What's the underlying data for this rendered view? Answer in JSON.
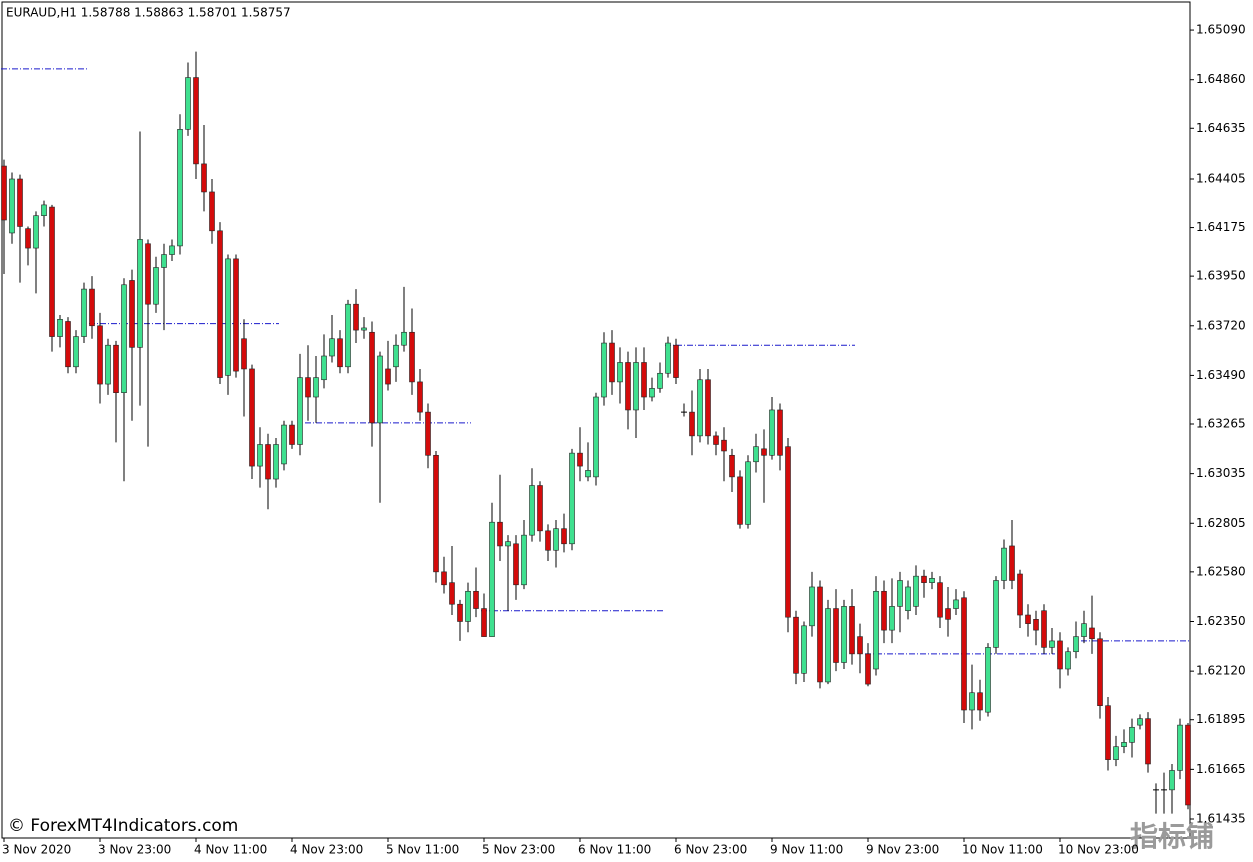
{
  "chart_data": {
    "type": "candlestick",
    "title": "EURAUD,H1  1.58788 1.58863 1.58701 1.58757",
    "categories": [
      "3 Nov 2020",
      null,
      null,
      null,
      null,
      null,
      null,
      null,
      null,
      null,
      null,
      null,
      "3 Nov 23:00",
      null,
      null,
      null,
      null,
      null,
      null,
      null,
      null,
      null,
      null,
      null,
      "4 Nov 11:00",
      null,
      null,
      null,
      null,
      null,
      null,
      null,
      null,
      null,
      null,
      null,
      "4 Nov 23:00",
      null,
      null,
      null,
      null,
      null,
      null,
      null,
      null,
      null,
      null,
      null,
      "5 Nov 11:00",
      null,
      null,
      null,
      null,
      null,
      null,
      null,
      null,
      null,
      null,
      null,
      "5 Nov 23:00",
      null,
      null,
      null,
      null,
      null,
      null,
      null,
      null,
      null,
      null,
      null,
      "6 Nov 11:00",
      null,
      null,
      null,
      null,
      null,
      null,
      null,
      null,
      null,
      null,
      null,
      "6 Nov 23:00",
      null,
      null,
      null,
      null,
      null,
      null,
      null,
      null,
      null,
      null,
      null,
      "9 Nov 11:00",
      null,
      null,
      null,
      null,
      null,
      null,
      null,
      null,
      null,
      null,
      null,
      "9 Nov 23:00",
      null,
      null,
      null,
      null,
      null,
      null,
      null,
      null,
      null,
      null,
      null,
      "10 Nov 11:00",
      null,
      null,
      null,
      null,
      null,
      null,
      null,
      null,
      null,
      null,
      null,
      "10 Nov 23:00",
      null,
      null,
      null,
      null,
      null,
      null,
      null,
      null,
      null,
      null,
      null,
      null,
      null,
      null,
      null,
      null
    ],
    "open": [
      1.6446,
      1.6415,
      1.644,
      1.6417,
      1.6408,
      1.6423,
      1.6427,
      1.6367,
      1.6374,
      1.6353,
      1.6367,
      1.6389,
      1.6372,
      1.6345,
      1.6363,
      1.6341,
      1.6393,
      1.6362,
      1.641,
      1.6382,
      1.6399,
      1.6405,
      1.6409,
      1.6463,
      1.6487,
      1.6447,
      1.6434,
      1.6416,
      1.6349,
      1.6403,
      1.6366,
      1.6352,
      1.6307,
      1.6317,
      1.6301,
      1.6308,
      1.6326,
      1.6317,
      1.6348,
      1.6339,
      1.6347,
      1.6358,
      1.6366,
      1.6353,
      1.6382,
      1.637,
      1.6369,
      1.6327,
      1.6352,
      1.6353,
      1.6363,
      1.6369,
      1.6346,
      1.6332,
      1.6312,
      1.6258,
      1.6253,
      1.6243,
      1.6235,
      1.6249,
      1.6241,
      1.6228,
      1.6281,
      1.627,
      1.6271,
      1.6252,
      1.6275,
      1.6298,
      1.6277,
      1.6268,
      1.6278,
      1.6271,
      1.6313,
      1.6302,
      1.6302,
      1.6339,
      1.6364,
      1.6346,
      1.6355,
      1.6333,
      1.6355,
      1.6339,
      1.6343,
      1.635,
      1.6363,
      1.6332,
      1.6332,
      1.6321,
      1.6347,
      1.6321,
      1.6319,
      1.6312,
      1.6302,
      1.628,
      1.6309,
      1.6315,
      1.6312,
      1.6333,
      1.6316,
      1.6237,
      1.6211,
      1.6233,
      1.6251,
      1.6207,
      1.6241,
      1.6216,
      1.6242,
      1.6228,
      1.622,
      1.6213,
      1.6249,
      1.6231,
      1.6242,
      1.624,
      1.6242,
      1.6256,
      1.6253,
      1.6253,
      1.6241,
      1.6241,
      1.6246,
      1.6194,
      1.6202,
      1.6193,
      1.6223,
      1.6254,
      1.627,
      1.6257,
      1.6238,
      1.6236,
      1.624,
      1.6223,
      1.6226,
      1.6213,
      1.6221,
      1.6228,
      1.6232,
      1.6227,
      1.6196,
      1.6171,
      1.6177,
      1.6179,
      1.6187,
      1.619,
      1.6157,
      1.6157,
      1.6157,
      1.6166,
      1.6187
    ],
    "high": [
      1.6449,
      1.6443,
      1.6442,
      1.6418,
      1.6425,
      1.643,
      1.6428,
      1.6377,
      1.6376,
      1.637,
      1.6392,
      1.6395,
      1.6378,
      1.6366,
      1.6365,
      1.6394,
      1.6398,
      1.6462,
      1.6412,
      1.6404,
      1.641,
      1.6412,
      1.647,
      1.6494,
      1.6499,
      1.6465,
      1.644,
      1.642,
      1.6405,
      1.6405,
      1.6375,
      1.6354,
      1.6325,
      1.6322,
      1.632,
      1.6328,
      1.6328,
      1.6359,
      1.6363,
      1.6358,
      1.6368,
      1.6377,
      1.637,
      1.6384,
      1.6389,
      1.6376,
      1.6374,
      1.636,
      1.6365,
      1.6368,
      1.639,
      1.638,
      1.6352,
      1.6336,
      1.6314,
      1.6265,
      1.627,
      1.6245,
      1.6253,
      1.626,
      1.6248,
      1.629,
      1.6303,
      1.6275,
      1.6275,
      1.6282,
      1.6306,
      1.63,
      1.628,
      1.6282,
      1.6285,
      1.6315,
      1.6325,
      1.6318,
      1.6341,
      1.6369,
      1.637,
      1.6362,
      1.636,
      1.6362,
      1.6362,
      1.6348,
      1.6355,
      1.6367,
      1.6366,
      1.6336,
      1.6342,
      1.6352,
      1.6352,
      1.6323,
      1.6325,
      1.6315,
      1.6305,
      1.6312,
      1.6322,
      1.6324,
      1.6339,
      1.6336,
      1.632,
      1.624,
      1.6235,
      1.6258,
      1.6254,
      1.6245,
      1.625,
      1.6245,
      1.625,
      1.6234,
      1.6225,
      1.6256,
      1.6254,
      1.6255,
      1.6258,
      1.6254,
      1.6261,
      1.6259,
      1.6258,
      1.6256,
      1.6251,
      1.625,
      1.6249,
      1.6215,
      1.6208,
      1.6225,
      1.6256,
      1.6273,
      1.6282,
      1.6259,
      1.6243,
      1.624,
      1.6243,
      1.6232,
      1.623,
      1.6223,
      1.6235,
      1.624,
      1.6247,
      1.623,
      1.62,
      1.6182,
      1.6185,
      1.619,
      1.6192,
      1.6193,
      1.616,
      1.6165,
      1.6169,
      1.619,
      1.6188
    ],
    "low": [
      1.6396,
      1.641,
      1.6392,
      1.64,
      1.6387,
      1.6418,
      1.636,
      1.6362,
      1.635,
      1.635,
      1.6364,
      1.6366,
      1.6336,
      1.634,
      1.6318,
      1.63,
      1.6328,
      1.6335,
      1.6316,
      1.6378,
      1.637,
      1.6402,
      1.6405,
      1.646,
      1.644,
      1.6425,
      1.641,
      1.6345,
      1.634,
      1.6348,
      1.633,
      1.6301,
      1.6297,
      1.6287,
      1.6297,
      1.6305,
      1.6315,
      1.6312,
      1.6328,
      1.6327,
      1.6343,
      1.6355,
      1.635,
      1.635,
      1.6364,
      1.6366,
      1.6316,
      1.629,
      1.6342,
      1.6346,
      1.636,
      1.634,
      1.6328,
      1.6306,
      1.6253,
      1.6248,
      1.6238,
      1.6226,
      1.623,
      1.6237,
      1.6228,
      1.6228,
      1.6263,
      1.624,
      1.6245,
      1.625,
      1.6272,
      1.6272,
      1.6263,
      1.626,
      1.6267,
      1.6268,
      1.63,
      1.63,
      1.6298,
      1.6335,
      1.634,
      1.6336,
      1.6324,
      1.632,
      1.6333,
      1.6337,
      1.6341,
      1.6348,
      1.6345,
      1.633,
      1.6312,
      1.6318,
      1.6317,
      1.6312,
      1.63,
      1.6295,
      1.6278,
      1.6278,
      1.6304,
      1.629,
      1.631,
      1.6305,
      1.623,
      1.6206,
      1.6207,
      1.6228,
      1.6204,
      1.6206,
      1.6212,
      1.6213,
      1.6215,
      1.6211,
      1.6205,
      1.621,
      1.6225,
      1.6225,
      1.623,
      1.6236,
      1.6238,
      1.6246,
      1.625,
      1.6232,
      1.6228,
      1.6238,
      1.6188,
      1.6185,
      1.6189,
      1.6191,
      1.622,
      1.625,
      1.625,
      1.6232,
      1.6228,
      1.6224,
      1.622,
      1.622,
      1.6204,
      1.621,
      1.6218,
      1.6225,
      1.622,
      1.619,
      1.6166,
      1.6168,
      1.6174,
      1.6172,
      1.6185,
      1.6165,
      1.6146,
      1.6146,
      1.6146,
      1.6162,
      1.6148
    ],
    "close": [
      1.6421,
      1.644,
      1.6418,
      1.6408,
      1.6423,
      1.6428,
      1.6367,
      1.6375,
      1.6353,
      1.6367,
      1.6389,
      1.6372,
      1.6345,
      1.6363,
      1.6341,
      1.6391,
      1.6362,
      1.6412,
      1.6382,
      1.6399,
      1.6405,
      1.6409,
      1.6463,
      1.6487,
      1.6447,
      1.6434,
      1.6416,
      1.6348,
      1.6403,
      1.6351,
      1.6352,
      1.6307,
      1.6317,
      1.6301,
      1.6317,
      1.6326,
      1.6317,
      1.6348,
      1.6339,
      1.6348,
      1.6358,
      1.6366,
      1.6353,
      1.6382,
      1.637,
      1.6371,
      1.6327,
      1.6358,
      1.6345,
      1.6363,
      1.6369,
      1.6346,
      1.6332,
      1.6312,
      1.6258,
      1.6252,
      1.6243,
      1.6235,
      1.6249,
      1.6241,
      1.6228,
      1.6281,
      1.627,
      1.6272,
      1.6252,
      1.6275,
      1.6298,
      1.6277,
      1.6268,
      1.6278,
      1.6271,
      1.6313,
      1.6307,
      1.6305,
      1.6339,
      1.6364,
      1.6346,
      1.6355,
      1.6333,
      1.6355,
      1.6339,
      1.6343,
      1.635,
      1.6364,
      1.6348,
      1.6332,
      1.6321,
      1.6347,
      1.6321,
      1.6317,
      1.6314,
      1.6302,
      1.628,
      1.6309,
      1.6316,
      1.6312,
      1.6333,
      1.6312,
      1.6237,
      1.6211,
      1.6233,
      1.6251,
      1.6207,
      1.6241,
      1.6216,
      1.6242,
      1.622,
      1.622,
      1.6206,
      1.6249,
      1.6231,
      1.6242,
      1.6254,
      1.6251,
      1.6256,
      1.6253,
      1.6255,
      1.6237,
      1.6236,
      1.6245,
      1.6194,
      1.6202,
      1.6194,
      1.6223,
      1.6254,
      1.6269,
      1.6254,
      1.6238,
      1.6234,
      1.6231,
      1.6223,
      1.6226,
      1.6213,
      1.6221,
      1.6228,
      1.6234,
      1.6227,
      1.6196,
      1.6171,
      1.6177,
      1.6179,
      1.6186,
      1.619,
      1.6169,
      1.6157,
      1.6157,
      1.6166,
      1.6187,
      1.615
    ],
    "up_color": "#3fe08f",
    "down_color": "#d40b0b",
    "wick_color": "#000000",
    "levels": [
      {
        "value": 1.6491,
        "from": 0,
        "to": 10
      },
      {
        "value": 1.6373,
        "from": 11,
        "to": 34
      },
      {
        "value": 1.6327,
        "from": 38,
        "to": 58
      },
      {
        "value": 1.624,
        "from": 60,
        "to": 82
      },
      {
        "value": 1.6363,
        "from": 83,
        "to": 106
      },
      {
        "value": 1.622,
        "from": 108,
        "to": 131
      },
      {
        "value": 1.6226,
        "from": 135,
        "to": 148
      }
    ],
    "level_color": "#1a1acc",
    "ylim": [
      1.61347,
      1.6522
    ],
    "yticks": [
      {
        "value": 1.6509,
        "label": "1.65090"
      },
      {
        "value": 1.6486,
        "label": "1.64860"
      },
      1.64635,
      {
        "value": 1.644,
        "label": "1.64405"
      },
      1.64175,
      {
        "value": 1.6395,
        "label": "1.63950"
      },
      {
        "value": 1.6372,
        "label": "1.63720"
      },
      {
        "value": 1.6349,
        "label": "1.63490"
      },
      1.63265,
      1.63035,
      1.62805,
      {
        "value": 1.6258,
        "label": "1.62580"
      },
      {
        "value": 1.6235,
        "label": "1.62350"
      },
      {
        "value": 1.6212,
        "label": "1.62120"
      },
      1.61895,
      1.61665,
      1.61435
    ]
  },
  "watermark": "© ForexMT4Indicators.com",
  "badge": "指标铺"
}
